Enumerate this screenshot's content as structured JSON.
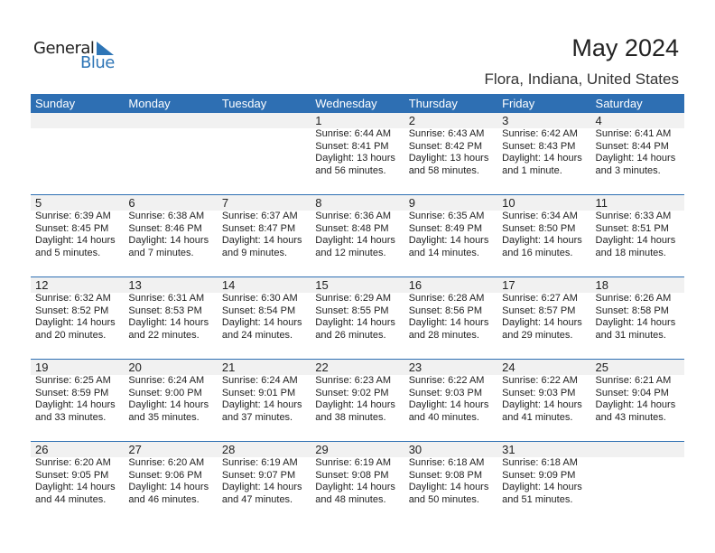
{
  "logo": {
    "line1": "General",
    "line2": "Blue",
    "color": "#2e75b6"
  },
  "title": "May 2024",
  "location": "Flora, Indiana, United States",
  "header_color": "#2e6fb3",
  "weekdays": [
    "Sunday",
    "Monday",
    "Tuesday",
    "Wednesday",
    "Thursday",
    "Friday",
    "Saturday"
  ],
  "weeks": [
    [
      null,
      null,
      null,
      {
        "day": "1",
        "sunrise": "Sunrise: 6:44 AM",
        "sunset": "Sunset: 8:41 PM",
        "daylight": "Daylight: 13 hours",
        "minutes": "and 56 minutes."
      },
      {
        "day": "2",
        "sunrise": "Sunrise: 6:43 AM",
        "sunset": "Sunset: 8:42 PM",
        "daylight": "Daylight: 13 hours",
        "minutes": "and 58 minutes."
      },
      {
        "day": "3",
        "sunrise": "Sunrise: 6:42 AM",
        "sunset": "Sunset: 8:43 PM",
        "daylight": "Daylight: 14 hours",
        "minutes": "and 1 minute."
      },
      {
        "day": "4",
        "sunrise": "Sunrise: 6:41 AM",
        "sunset": "Sunset: 8:44 PM",
        "daylight": "Daylight: 14 hours",
        "minutes": "and 3 minutes."
      }
    ],
    [
      {
        "day": "5",
        "sunrise": "Sunrise: 6:39 AM",
        "sunset": "Sunset: 8:45 PM",
        "daylight": "Daylight: 14 hours",
        "minutes": "and 5 minutes."
      },
      {
        "day": "6",
        "sunrise": "Sunrise: 6:38 AM",
        "sunset": "Sunset: 8:46 PM",
        "daylight": "Daylight: 14 hours",
        "minutes": "and 7 minutes."
      },
      {
        "day": "7",
        "sunrise": "Sunrise: 6:37 AM",
        "sunset": "Sunset: 8:47 PM",
        "daylight": "Daylight: 14 hours",
        "minutes": "and 9 minutes."
      },
      {
        "day": "8",
        "sunrise": "Sunrise: 6:36 AM",
        "sunset": "Sunset: 8:48 PM",
        "daylight": "Daylight: 14 hours",
        "minutes": "and 12 minutes."
      },
      {
        "day": "9",
        "sunrise": "Sunrise: 6:35 AM",
        "sunset": "Sunset: 8:49 PM",
        "daylight": "Daylight: 14 hours",
        "minutes": "and 14 minutes."
      },
      {
        "day": "10",
        "sunrise": "Sunrise: 6:34 AM",
        "sunset": "Sunset: 8:50 PM",
        "daylight": "Daylight: 14 hours",
        "minutes": "and 16 minutes."
      },
      {
        "day": "11",
        "sunrise": "Sunrise: 6:33 AM",
        "sunset": "Sunset: 8:51 PM",
        "daylight": "Daylight: 14 hours",
        "minutes": "and 18 minutes."
      }
    ],
    [
      {
        "day": "12",
        "sunrise": "Sunrise: 6:32 AM",
        "sunset": "Sunset: 8:52 PM",
        "daylight": "Daylight: 14 hours",
        "minutes": "and 20 minutes."
      },
      {
        "day": "13",
        "sunrise": "Sunrise: 6:31 AM",
        "sunset": "Sunset: 8:53 PM",
        "daylight": "Daylight: 14 hours",
        "minutes": "and 22 minutes."
      },
      {
        "day": "14",
        "sunrise": "Sunrise: 6:30 AM",
        "sunset": "Sunset: 8:54 PM",
        "daylight": "Daylight: 14 hours",
        "minutes": "and 24 minutes."
      },
      {
        "day": "15",
        "sunrise": "Sunrise: 6:29 AM",
        "sunset": "Sunset: 8:55 PM",
        "daylight": "Daylight: 14 hours",
        "minutes": "and 26 minutes."
      },
      {
        "day": "16",
        "sunrise": "Sunrise: 6:28 AM",
        "sunset": "Sunset: 8:56 PM",
        "daylight": "Daylight: 14 hours",
        "minutes": "and 28 minutes."
      },
      {
        "day": "17",
        "sunrise": "Sunrise: 6:27 AM",
        "sunset": "Sunset: 8:57 PM",
        "daylight": "Daylight: 14 hours",
        "minutes": "and 29 minutes."
      },
      {
        "day": "18",
        "sunrise": "Sunrise: 6:26 AM",
        "sunset": "Sunset: 8:58 PM",
        "daylight": "Daylight: 14 hours",
        "minutes": "and 31 minutes."
      }
    ],
    [
      {
        "day": "19",
        "sunrise": "Sunrise: 6:25 AM",
        "sunset": "Sunset: 8:59 PM",
        "daylight": "Daylight: 14 hours",
        "minutes": "and 33 minutes."
      },
      {
        "day": "20",
        "sunrise": "Sunrise: 6:24 AM",
        "sunset": "Sunset: 9:00 PM",
        "daylight": "Daylight: 14 hours",
        "minutes": "and 35 minutes."
      },
      {
        "day": "21",
        "sunrise": "Sunrise: 6:24 AM",
        "sunset": "Sunset: 9:01 PM",
        "daylight": "Daylight: 14 hours",
        "minutes": "and 37 minutes."
      },
      {
        "day": "22",
        "sunrise": "Sunrise: 6:23 AM",
        "sunset": "Sunset: 9:02 PM",
        "daylight": "Daylight: 14 hours",
        "minutes": "and 38 minutes."
      },
      {
        "day": "23",
        "sunrise": "Sunrise: 6:22 AM",
        "sunset": "Sunset: 9:03 PM",
        "daylight": "Daylight: 14 hours",
        "minutes": "and 40 minutes."
      },
      {
        "day": "24",
        "sunrise": "Sunrise: 6:22 AM",
        "sunset": "Sunset: 9:03 PM",
        "daylight": "Daylight: 14 hours",
        "minutes": "and 41 minutes."
      },
      {
        "day": "25",
        "sunrise": "Sunrise: 6:21 AM",
        "sunset": "Sunset: 9:04 PM",
        "daylight": "Daylight: 14 hours",
        "minutes": "and 43 minutes."
      }
    ],
    [
      {
        "day": "26",
        "sunrise": "Sunrise: 6:20 AM",
        "sunset": "Sunset: 9:05 PM",
        "daylight": "Daylight: 14 hours",
        "minutes": "and 44 minutes."
      },
      {
        "day": "27",
        "sunrise": "Sunrise: 6:20 AM",
        "sunset": "Sunset: 9:06 PM",
        "daylight": "Daylight: 14 hours",
        "minutes": "and 46 minutes."
      },
      {
        "day": "28",
        "sunrise": "Sunrise: 6:19 AM",
        "sunset": "Sunset: 9:07 PM",
        "daylight": "Daylight: 14 hours",
        "minutes": "and 47 minutes."
      },
      {
        "day": "29",
        "sunrise": "Sunrise: 6:19 AM",
        "sunset": "Sunset: 9:08 PM",
        "daylight": "Daylight: 14 hours",
        "minutes": "and 48 minutes."
      },
      {
        "day": "30",
        "sunrise": "Sunrise: 6:18 AM",
        "sunset": "Sunset: 9:08 PM",
        "daylight": "Daylight: 14 hours",
        "minutes": "and 50 minutes."
      },
      {
        "day": "31",
        "sunrise": "Sunrise: 6:18 AM",
        "sunset": "Sunset: 9:09 PM",
        "daylight": "Daylight: 14 hours",
        "minutes": "and 51 minutes."
      },
      null
    ]
  ]
}
